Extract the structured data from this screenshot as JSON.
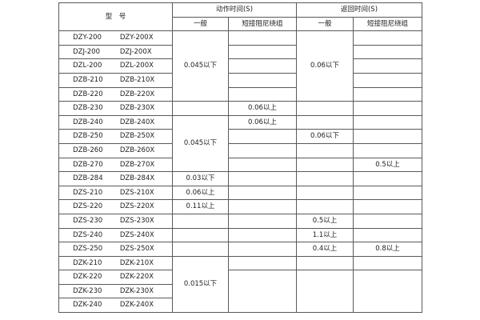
{
  "header": {
    "model": "型　号",
    "action_time": "动作时间(S)",
    "return_time": "返回时间(S)",
    "general": "一般",
    "short_damping": "短接阻尼绕组"
  },
  "columns": [
    "model_a",
    "model_b",
    "action_general",
    "action_short",
    "return_general",
    "return_short"
  ],
  "rows": [
    [
      "DZY-200",
      "DZY-200X",
      "0.045以下",
      "",
      "0.06以下",
      ""
    ],
    [
      "DZJ-200",
      "DZJ-200X",
      null,
      "",
      null,
      ""
    ],
    [
      "DZL-200",
      "DZL-200X",
      null,
      "",
      null,
      ""
    ],
    [
      "DZB-210",
      "DZB-210X",
      null,
      "",
      null,
      ""
    ],
    [
      "DZB-220",
      "DZB-220X",
      null,
      "",
      null,
      ""
    ],
    [
      "DZB-230",
      "DZB-230X",
      "",
      "0.06以上",
      "",
      ""
    ],
    [
      "DZB-240",
      "DZB-240X",
      "0.045以下",
      "0.06以上",
      "",
      ""
    ],
    [
      "DZB-250",
      "DZB-250X",
      null,
      "",
      "0.06以下",
      ""
    ],
    [
      "DZB-260",
      "DZB-260X",
      null,
      "",
      "",
      ""
    ],
    [
      "DZB-270",
      "DZB-270X",
      null,
      "",
      "",
      "0.5以上"
    ],
    [
      "DZB-284",
      "DZB-284X",
      "0.03以下",
      "",
      "",
      ""
    ],
    [
      "DZS-210",
      "DZS-210X",
      "0.06以上",
      "",
      "",
      ""
    ],
    [
      "DZS-220",
      "DZS-220X",
      "0.11以上",
      "",
      "",
      ""
    ],
    [
      "DZS-230",
      "DZS-230X",
      "",
      "",
      "0.5以上",
      ""
    ],
    [
      "DZS-240",
      "DZS-240X",
      "",
      "",
      "1.1以上",
      ""
    ],
    [
      "DZS-250",
      "DZS-250X",
      "",
      "",
      "0.4以上",
      "0.8以上"
    ],
    [
      "DZK-210",
      "DZK-210X",
      "0.015以下",
      "",
      "",
      ""
    ],
    [
      "DZK-220",
      "DZK-220X",
      null,
      "",
      "",
      ""
    ],
    [
      "DZK-230",
      "DZK-230X",
      null,
      null,
      null,
      null
    ],
    [
      "DZK-240",
      "DZK-240X",
      null,
      null,
      null,
      null
    ]
  ]
}
